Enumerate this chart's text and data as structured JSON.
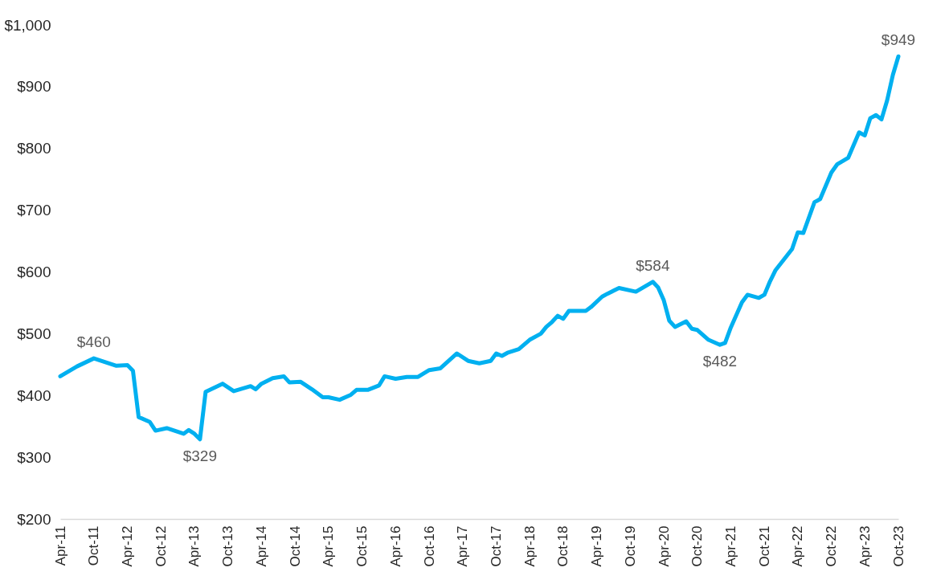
{
  "chart_data": {
    "type": "line",
    "x": [
      "2011-04",
      "2011-07",
      "2011-10",
      "2012-02",
      "2012-04",
      "2012-05",
      "2012-06",
      "2012-08",
      "2012-09",
      "2012-11",
      "2013-02",
      "2013-03",
      "2013-04",
      "2013-05",
      "2013-06",
      "2013-09",
      "2013-11",
      "2014-02",
      "2014-03",
      "2014-04",
      "2014-06",
      "2014-08",
      "2014-09",
      "2014-11",
      "2015-01",
      "2015-03",
      "2015-04",
      "2015-06",
      "2015-08",
      "2015-09",
      "2015-11",
      "2016-01",
      "2016-02",
      "2016-04",
      "2016-06",
      "2016-08",
      "2016-10",
      "2016-12",
      "2017-03",
      "2017-05",
      "2017-07",
      "2017-09",
      "2017-10",
      "2017-11",
      "2017-12",
      "2018-02",
      "2018-04",
      "2018-06",
      "2018-07",
      "2018-08",
      "2018-09",
      "2018-10",
      "2018-11",
      "2019-02",
      "2019-03",
      "2019-05",
      "2019-06",
      "2019-08",
      "2019-11",
      "2020-02",
      "2020-03",
      "2020-04",
      "2020-05",
      "2020-06",
      "2020-08",
      "2020-09",
      "2020-10",
      "2020-12",
      "2021-02",
      "2021-03",
      "2021-04",
      "2021-05",
      "2021-06",
      "2021-07",
      "2021-09",
      "2021-10",
      "2021-11",
      "2021-12",
      "2022-03",
      "2022-04",
      "2022-05",
      "2022-07",
      "2022-08",
      "2022-10",
      "2022-11",
      "2023-01",
      "2023-03",
      "2023-04",
      "2023-05",
      "2023-06",
      "2023-07",
      "2023-08",
      "2023-09",
      "2023-10"
    ],
    "series": [
      {
        "color": "#00b0f0",
        "values": [
          431,
          447,
          460,
          448,
          449,
          440,
          365,
          357,
          343,
          347,
          338,
          344,
          338,
          329,
          406,
          419,
          407,
          415,
          410,
          419,
          428,
          431,
          421,
          422,
          410,
          397,
          397,
          393,
          401,
          409,
          409,
          416,
          431,
          427,
          430,
          430,
          441,
          444,
          468,
          456,
          452,
          456,
          468,
          464,
          469,
          475,
          490,
          500,
          511,
          519,
          529,
          524,
          537,
          537,
          543,
          560,
          565,
          574,
          568,
          584,
          575,
          554,
          521,
          511,
          520,
          508,
          506,
          490,
          482,
          485,
          510,
          530,
          551,
          563,
          558,
          563,
          585,
          603,
          637,
          664,
          663,
          713,
          718,
          761,
          774,
          785,
          826,
          821,
          849,
          854,
          847,
          878,
          919,
          949
        ]
      }
    ],
    "xlim": [
      "2011-04",
      "2023-10"
    ],
    "xticks": [
      {
        "value": "2011-04",
        "label": "Apr-11"
      },
      {
        "value": "2011-10",
        "label": "Oct-11"
      },
      {
        "value": "2012-04",
        "label": "Apr-12"
      },
      {
        "value": "2012-10",
        "label": "Oct-12"
      },
      {
        "value": "2013-04",
        "label": "Apr-13"
      },
      {
        "value": "2013-10",
        "label": "Oct-13"
      },
      {
        "value": "2014-04",
        "label": "Apr-14"
      },
      {
        "value": "2014-10",
        "label": "Oct-14"
      },
      {
        "value": "2015-04",
        "label": "Apr-15"
      },
      {
        "value": "2015-10",
        "label": "Oct-15"
      },
      {
        "value": "2016-04",
        "label": "Apr-16"
      },
      {
        "value": "2016-10",
        "label": "Oct-16"
      },
      {
        "value": "2017-04",
        "label": "Apr-17"
      },
      {
        "value": "2017-10",
        "label": "Oct-17"
      },
      {
        "value": "2018-04",
        "label": "Apr-18"
      },
      {
        "value": "2018-10",
        "label": "Oct-18"
      },
      {
        "value": "2019-04",
        "label": "Apr-19"
      },
      {
        "value": "2019-10",
        "label": "Oct-19"
      },
      {
        "value": "2020-04",
        "label": "Apr-20"
      },
      {
        "value": "2020-10",
        "label": "Oct-20"
      },
      {
        "value": "2021-04",
        "label": "Apr-21"
      },
      {
        "value": "2021-10",
        "label": "Oct-21"
      },
      {
        "value": "2022-04",
        "label": "Apr-22"
      },
      {
        "value": "2022-10",
        "label": "Oct-22"
      },
      {
        "value": "2023-04",
        "label": "Apr-23"
      },
      {
        "value": "2023-10",
        "label": "Oct-23"
      }
    ],
    "ylim": [
      200,
      1000
    ],
    "yticks": [
      {
        "value": 200,
        "label": "$200"
      },
      {
        "value": 300,
        "label": "$300"
      },
      {
        "value": 400,
        "label": "$400"
      },
      {
        "value": 500,
        "label": "$500"
      },
      {
        "value": 600,
        "label": "$600"
      },
      {
        "value": 700,
        "label": "$700"
      },
      {
        "value": 800,
        "label": "$800"
      },
      {
        "value": 900,
        "label": "$900"
      },
      {
        "value": 1000,
        "label": "$1,000"
      }
    ],
    "annotations": [
      {
        "text": "$460",
        "x": "2011-10",
        "y": 460
      },
      {
        "text": "$329",
        "x": "2013-05",
        "y": 329
      },
      {
        "text": "$584",
        "x": "2020-02",
        "y": 584
      },
      {
        "text": "$482",
        "x": "2021-02",
        "y": 482
      },
      {
        "text": "$949",
        "x": "2023-10",
        "y": 949
      }
    ]
  }
}
